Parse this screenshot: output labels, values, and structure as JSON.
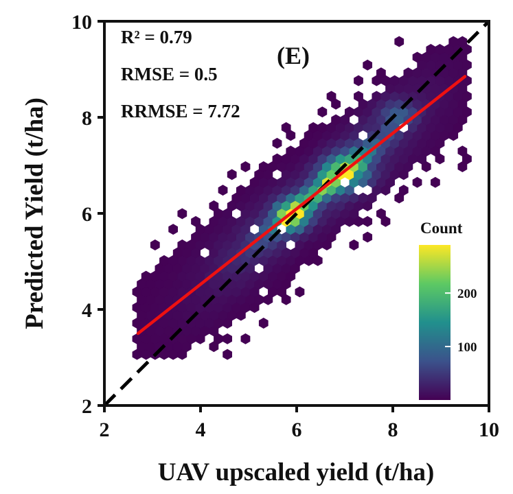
{
  "chart_data": {
    "type": "hexbin",
    "panel_label": "(E)",
    "xlabel": "UAV upscaled yield (t/ha)",
    "ylabel": "Predicted Yield (t/ha)",
    "xlim": [
      2,
      10
    ],
    "ylim": [
      2,
      10
    ],
    "xticks": [
      2,
      4,
      6,
      8,
      10
    ],
    "yticks": [
      2,
      4,
      6,
      8,
      10
    ],
    "stats": {
      "r2": "R² = 0.79",
      "rmse": "RMSE = 0.5",
      "rrmse": "RRMSE = 7.72"
    },
    "colorbar": {
      "title": "Count",
      "ticks": [
        100,
        200
      ],
      "max": 290,
      "colors": [
        "#440154",
        "#3b528b",
        "#21908d",
        "#5dc963",
        "#fde725"
      ]
    },
    "one_to_one_line": {
      "from": [
        2,
        2
      ],
      "to": [
        10,
        10
      ],
      "color": "#000000",
      "style": "dashed"
    },
    "fit_line": {
      "from": [
        2.7,
        3.5
      ],
      "to": [
        9.5,
        8.85
      ],
      "color": "#ee1111"
    },
    "density_model": {
      "description": "Approximate hexbin density: points concentrated along the fit line",
      "x_range": [
        2.6,
        9.6
      ],
      "peak": {
        "x": 5.9,
        "y": 5.95,
        "count": 285
      },
      "secondary_peak": {
        "x": 7.0,
        "y": 6.85,
        "count": 250
      }
    }
  }
}
